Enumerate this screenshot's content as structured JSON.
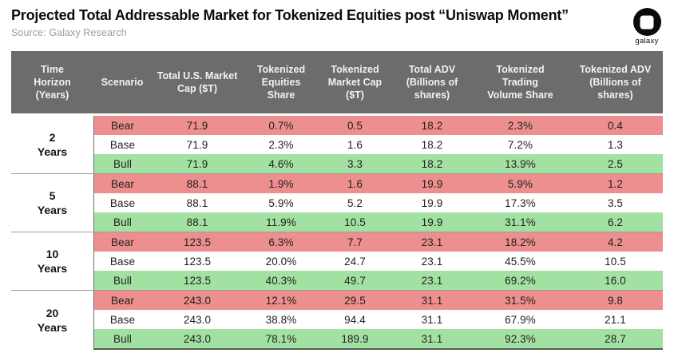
{
  "page": {
    "title": "Projected Total Addressable Market for Tokenized Equities post “Uniswap Moment”",
    "source": "Source: Galaxy Research",
    "logo_text": "galaxy"
  },
  "colors": {
    "header_bg": "#6c6c6c",
    "bear_bg": "#ee8f8f",
    "base_bg": "#ffffff",
    "bull_bg": "#a3e1a3"
  },
  "table": {
    "columns": [
      "Time\nHorizon\n(Years)",
      "Scenario",
      "Total U.S. Market\nCap ($T)",
      "Tokenized\nEquities\nShare",
      "Tokenized\nMarket Cap\n($T)",
      "Total ADV\n(Billions of\nshares)",
      "Tokenized\nTrading\nVolume Share",
      "Tokenized ADV\n(Billions of\nshares)"
    ],
    "groups": [
      {
        "horizon": "2\nYears",
        "rows": [
          {
            "scenario": "Bear",
            "tone": "bear",
            "values": [
              "71.9",
              "0.7%",
              "0.5",
              "18.2",
              "2.3%",
              "0.4"
            ]
          },
          {
            "scenario": "Base",
            "tone": "base",
            "values": [
              "71.9",
              "2.3%",
              "1.6",
              "18.2",
              "7.2%",
              "1.3"
            ]
          },
          {
            "scenario": "Bull",
            "tone": "bull",
            "values": [
              "71.9",
              "4.6%",
              "3.3",
              "18.2",
              "13.9%",
              "2.5"
            ]
          }
        ]
      },
      {
        "horizon": "5\nYears",
        "rows": [
          {
            "scenario": "Bear",
            "tone": "bear",
            "values": [
              "88.1",
              "1.9%",
              "1.6",
              "19.9",
              "5.9%",
              "1.2"
            ]
          },
          {
            "scenario": "Base",
            "tone": "base",
            "values": [
              "88.1",
              "5.9%",
              "5.2",
              "19.9",
              "17.3%",
              "3.5"
            ]
          },
          {
            "scenario": "Bull",
            "tone": "bull",
            "values": [
              "88.1",
              "11.9%",
              "10.5",
              "19.9",
              "31.1%",
              "6.2"
            ]
          }
        ]
      },
      {
        "horizon": "10\nYears",
        "rows": [
          {
            "scenario": "Bear",
            "tone": "bear",
            "values": [
              "123.5",
              "6.3%",
              "7.7",
              "23.1",
              "18.2%",
              "4.2"
            ]
          },
          {
            "scenario": "Base",
            "tone": "base",
            "values": [
              "123.5",
              "20.0%",
              "24.7",
              "23.1",
              "45.5%",
              "10.5"
            ]
          },
          {
            "scenario": "Bull",
            "tone": "bull",
            "values": [
              "123.5",
              "40.3%",
              "49.7",
              "23.1",
              "69.2%",
              "16.0"
            ]
          }
        ]
      },
      {
        "horizon": "20\nYears",
        "rows": [
          {
            "scenario": "Bear",
            "tone": "bear",
            "values": [
              "243.0",
              "12.1%",
              "29.5",
              "31.1",
              "31.5%",
              "9.8"
            ]
          },
          {
            "scenario": "Base",
            "tone": "base",
            "values": [
              "243.0",
              "38.8%",
              "94.4",
              "31.1",
              "67.9%",
              "21.1"
            ]
          },
          {
            "scenario": "Bull",
            "tone": "bull",
            "values": [
              "243.0",
              "78.1%",
              "189.9",
              "31.1",
              "92.3%",
              "28.7"
            ]
          }
        ]
      }
    ]
  },
  "chart_data": {
    "type": "table",
    "title": "Projected Total Addressable Market for Tokenized Equities post “Uniswap Moment”",
    "source": "Source: Galaxy Research",
    "columns": [
      "Time Horizon (Years)",
      "Scenario",
      "Total U.S. Market Cap ($T)",
      "Tokenized Equities Share",
      "Tokenized Market Cap ($T)",
      "Total ADV (Billions of shares)",
      "Tokenized Trading Volume Share",
      "Tokenized ADV (Billions of shares)"
    ],
    "rows": [
      [
        "2 Years",
        "Bear",
        71.9,
        "0.7%",
        0.5,
        18.2,
        "2.3%",
        0.4
      ],
      [
        "2 Years",
        "Base",
        71.9,
        "2.3%",
        1.6,
        18.2,
        "7.2%",
        1.3
      ],
      [
        "2 Years",
        "Bull",
        71.9,
        "4.6%",
        3.3,
        18.2,
        "13.9%",
        2.5
      ],
      [
        "5 Years",
        "Bear",
        88.1,
        "1.9%",
        1.6,
        19.9,
        "5.9%",
        1.2
      ],
      [
        "5 Years",
        "Base",
        88.1,
        "5.9%",
        5.2,
        19.9,
        "17.3%",
        3.5
      ],
      [
        "5 Years",
        "Bull",
        88.1,
        "11.9%",
        10.5,
        19.9,
        "31.1%",
        6.2
      ],
      [
        "10 Years",
        "Bear",
        123.5,
        "6.3%",
        7.7,
        23.1,
        "18.2%",
        4.2
      ],
      [
        "10 Years",
        "Base",
        123.5,
        "20.0%",
        24.7,
        23.1,
        "45.5%",
        10.5
      ],
      [
        "10 Years",
        "Bull",
        123.5,
        "40.3%",
        49.7,
        23.1,
        "69.2%",
        16.0
      ],
      [
        "20 Years",
        "Bear",
        243.0,
        "12.1%",
        29.5,
        31.1,
        "31.5%",
        9.8
      ],
      [
        "20 Years",
        "Base",
        243.0,
        "38.8%",
        94.4,
        31.1,
        "67.9%",
        21.1
      ],
      [
        "20 Years",
        "Bull",
        243.0,
        "78.1%",
        189.9,
        31.1,
        "92.3%",
        28.7
      ]
    ],
    "row_color_coding": {
      "Bear": "#ee8f8f",
      "Base": "#ffffff",
      "Bull": "#a3e1a3"
    }
  }
}
